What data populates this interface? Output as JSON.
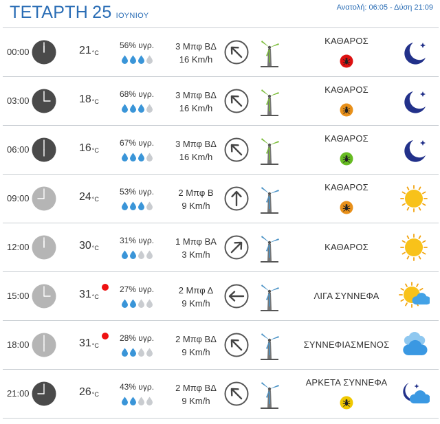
{
  "header": {
    "weekday": "ΤΕΤΑΡΤΗ",
    "day_num": "25",
    "month": "ΙΟΥΝΙΟΥ",
    "sun_times": "Ανατολή: 06:05 - Δύση 21:09"
  },
  "colors": {
    "accent": "#2a6db5",
    "night_clock": "#4a4a4a",
    "day_clock": "#b5b5b5",
    "drop_full": "#3a95d8",
    "drop_empty": "#c9ccd0",
    "hot_dot": "#ee1111",
    "bug_high": "#dd1111",
    "bug_medium": "#e8901a",
    "bug_low": "#66bb22",
    "bug_minimal": "#f0c800"
  },
  "temp_unit": "°C",
  "rows": [
    {
      "time": "00:00",
      "temp": "21",
      "hot": false,
      "humidity": "56% υγρ.",
      "drops": 3,
      "wind_bf": "3 Μπφ ΒΔ",
      "wind_kmh": "16 Km/h",
      "arrow_deg": 135,
      "turbine": "green",
      "condition": "ΚΑΘΑΡΟΣ",
      "bug": "high",
      "icon": "moon-icon",
      "clock": "night"
    },
    {
      "time": "03:00",
      "temp": "18",
      "hot": false,
      "humidity": "68% υγρ.",
      "drops": 3,
      "wind_bf": "3 Μπφ ΒΔ",
      "wind_kmh": "16 Km/h",
      "arrow_deg": 135,
      "turbine": "green",
      "condition": "ΚΑΘΑΡΟΣ",
      "bug": "medium",
      "icon": "moon-icon",
      "clock": "night"
    },
    {
      "time": "06:00",
      "temp": "16",
      "hot": false,
      "humidity": "67% υγρ.",
      "drops": 3,
      "wind_bf": "3 Μπφ ΒΔ",
      "wind_kmh": "16 Km/h",
      "arrow_deg": 135,
      "turbine": "green",
      "condition": "ΚΑΘΑΡΟΣ",
      "bug": "low",
      "icon": "moon-icon",
      "clock": "night"
    },
    {
      "time": "09:00",
      "temp": "24",
      "hot": false,
      "humidity": "53% υγρ.",
      "drops": 3,
      "wind_bf": "2 Μπφ Β",
      "wind_kmh": "9 Km/h",
      "arrow_deg": 180,
      "turbine": "blue",
      "condition": "ΚΑΘΑΡΟΣ",
      "bug": "medium",
      "icon": "sun-icon",
      "clock": "day"
    },
    {
      "time": "12:00",
      "temp": "30",
      "hot": false,
      "humidity": "31% υγρ.",
      "drops": 2,
      "wind_bf": "1 Μπφ ΒΑ",
      "wind_kmh": "3 Km/h",
      "arrow_deg": 225,
      "turbine": "blue",
      "condition": "ΚΑΘΑΡΟΣ",
      "bug": "none",
      "icon": "sun-icon",
      "clock": "day"
    },
    {
      "time": "15:00",
      "temp": "31",
      "hot": true,
      "humidity": "27% υγρ.",
      "drops": 2,
      "wind_bf": "2 Μπφ Δ",
      "wind_kmh": "9 Km/h",
      "arrow_deg": 90,
      "turbine": "blue",
      "condition": "ΛΙΓΑ ΣΥΝΝΕΦΑ",
      "bug": "none",
      "icon": "sun-cloud-icon",
      "clock": "day"
    },
    {
      "time": "18:00",
      "temp": "31",
      "hot": true,
      "humidity": "28% υγρ.",
      "drops": 2,
      "wind_bf": "2 Μπφ ΒΔ",
      "wind_kmh": "9 Km/h",
      "arrow_deg": 135,
      "turbine": "blue",
      "condition": "ΣΥΝΝΕΦΙΑΣΜΕΝΟΣ",
      "bug": "none",
      "icon": "clouds-icon",
      "clock": "day"
    },
    {
      "time": "21:00",
      "temp": "26",
      "hot": false,
      "humidity": "43% υγρ.",
      "drops": 2,
      "wind_bf": "2 Μπφ ΒΔ",
      "wind_kmh": "9 Km/h",
      "arrow_deg": 135,
      "turbine": "blue",
      "condition": "ΑΡΚΕΤΑ ΣΥΝΝΕΦΑ",
      "bug": "minimal",
      "icon": "moon-cloud-icon",
      "clock": "night"
    }
  ]
}
